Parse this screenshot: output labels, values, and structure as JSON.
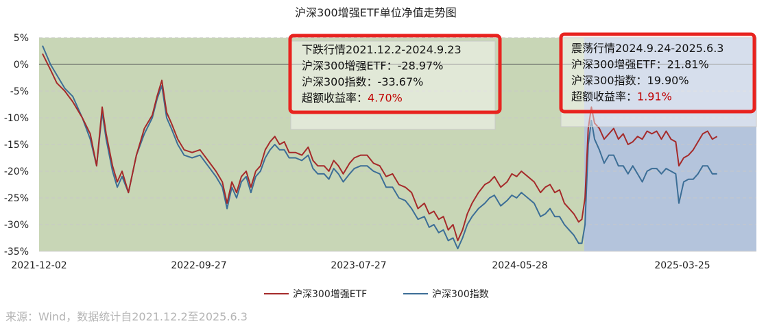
{
  "chart_data": {
    "type": "line",
    "title": "沪深300增强ETF单位净值走势图",
    "x_tick_labels": [
      "2021-12-02",
      "2022-09-27",
      "2023-07-27",
      "2024-05-28",
      "2025-03-25"
    ],
    "y_tick_labels": [
      "5%",
      "0%",
      "-5%",
      "-10%",
      "-15%",
      "-20%",
      "-25%",
      "-30%",
      "-35%"
    ],
    "ylim": [
      -35,
      5
    ],
    "y_unit": "%",
    "x_index_range": [
      0,
      850
    ],
    "grid": "horizontal dashed",
    "legend_position": "bottom-center",
    "series": [
      {
        "name": "沪深300增强ETF",
        "color": "#a52a2a",
        "points": [
          [
            0,
            2
          ],
          [
            10,
            -1
          ],
          [
            18,
            -3.5
          ],
          [
            28,
            -5
          ],
          [
            38,
            -7
          ],
          [
            50,
            -10
          ],
          [
            60,
            -13
          ],
          [
            68,
            -19
          ],
          [
            75,
            -8
          ],
          [
            80,
            -13
          ],
          [
            88,
            -19
          ],
          [
            94,
            -22
          ],
          [
            100,
            -20
          ],
          [
            108,
            -24
          ],
          [
            118,
            -17
          ],
          [
            128,
            -12
          ],
          [
            138,
            -9.5
          ],
          [
            144,
            -6
          ],
          [
            150,
            -3
          ],
          [
            156,
            -9
          ],
          [
            162,
            -11
          ],
          [
            170,
            -14
          ],
          [
            178,
            -16
          ],
          [
            188,
            -16.5
          ],
          [
            198,
            -16
          ],
          [
            208,
            -18
          ],
          [
            218,
            -20
          ],
          [
            226,
            -22
          ],
          [
            232,
            -26
          ],
          [
            238,
            -22
          ],
          [
            244,
            -24
          ],
          [
            250,
            -21
          ],
          [
            256,
            -20
          ],
          [
            262,
            -23
          ],
          [
            268,
            -20
          ],
          [
            274,
            -19
          ],
          [
            280,
            -16
          ],
          [
            286,
            -14.5
          ],
          [
            292,
            -13.5
          ],
          [
            298,
            -15
          ],
          [
            304,
            -14.5
          ],
          [
            310,
            -16.5
          ],
          [
            318,
            -16.5
          ],
          [
            326,
            -17
          ],
          [
            334,
            -15.5
          ],
          [
            340,
            -18
          ],
          [
            346,
            -19
          ],
          [
            354,
            -19
          ],
          [
            360,
            -20
          ],
          [
            366,
            -18
          ],
          [
            372,
            -19
          ],
          [
            378,
            -20.5
          ],
          [
            386,
            -18.5
          ],
          [
            392,
            -17.5
          ],
          [
            400,
            -17
          ],
          [
            408,
            -17
          ],
          [
            416,
            -18.5
          ],
          [
            424,
            -19
          ],
          [
            432,
            -21
          ],
          [
            440,
            -20.5
          ],
          [
            448,
            -22.5
          ],
          [
            456,
            -23
          ],
          [
            464,
            -24
          ],
          [
            472,
            -27
          ],
          [
            480,
            -26
          ],
          [
            486,
            -28
          ],
          [
            492,
            -27.5
          ],
          [
            498,
            -29
          ],
          [
            504,
            -28.5
          ],
          [
            510,
            -31
          ],
          [
            516,
            -30
          ],
          [
            522,
            -33
          ],
          [
            528,
            -31
          ],
          [
            534,
            -28
          ],
          [
            540,
            -26
          ],
          [
            548,
            -24
          ],
          [
            556,
            -22.5
          ],
          [
            562,
            -22
          ],
          [
            568,
            -21
          ],
          [
            576,
            -23
          ],
          [
            584,
            -22
          ],
          [
            590,
            -20.5
          ],
          [
            596,
            -21
          ],
          [
            602,
            -20
          ],
          [
            610,
            -21
          ],
          [
            618,
            -22
          ],
          [
            626,
            -24
          ],
          [
            632,
            -23
          ],
          [
            638,
            -22.5
          ],
          [
            644,
            -24
          ],
          [
            650,
            -23.5
          ],
          [
            656,
            -26
          ],
          [
            662,
            -27
          ],
          [
            668,
            -28
          ],
          [
            674,
            -29.5
          ],
          [
            678,
            -29
          ],
          [
            682,
            -25
          ],
          [
            686,
            -12
          ],
          [
            690,
            -8
          ],
          [
            694,
            -11
          ],
          [
            700,
            -12
          ],
          [
            706,
            -14
          ],
          [
            712,
            -13
          ],
          [
            718,
            -12
          ],
          [
            724,
            -14
          ],
          [
            730,
            -13
          ],
          [
            736,
            -15
          ],
          [
            742,
            -14.5
          ],
          [
            748,
            -13.5
          ],
          [
            754,
            -14
          ],
          [
            760,
            -12.5
          ],
          [
            766,
            -13
          ],
          [
            772,
            -12.5
          ],
          [
            778,
            -14
          ],
          [
            784,
            -12.5
          ],
          [
            790,
            -14
          ],
          [
            796,
            -14.5
          ],
          [
            800,
            -19
          ],
          [
            806,
            -17.5
          ],
          [
            812,
            -17
          ],
          [
            818,
            -16
          ],
          [
            824,
            -14.5
          ],
          [
            830,
            -13
          ],
          [
            836,
            -12.5
          ],
          [
            842,
            -14
          ],
          [
            848,
            -13.5
          ]
        ]
      },
      {
        "name": "沪深300指数",
        "color": "#3c6e96",
        "points": [
          [
            0,
            3.5
          ],
          [
            10,
            0
          ],
          [
            18,
            -2
          ],
          [
            28,
            -4.5
          ],
          [
            38,
            -6
          ],
          [
            50,
            -10
          ],
          [
            60,
            -14
          ],
          [
            68,
            -19
          ],
          [
            75,
            -9
          ],
          [
            80,
            -14
          ],
          [
            88,
            -20
          ],
          [
            94,
            -23
          ],
          [
            100,
            -21
          ],
          [
            108,
            -24
          ],
          [
            118,
            -17
          ],
          [
            128,
            -13
          ],
          [
            138,
            -10
          ],
          [
            144,
            -6.5
          ],
          [
            150,
            -4
          ],
          [
            156,
            -10
          ],
          [
            162,
            -12
          ],
          [
            170,
            -15
          ],
          [
            178,
            -17
          ],
          [
            188,
            -17.5
          ],
          [
            198,
            -17
          ],
          [
            208,
            -19
          ],
          [
            218,
            -21
          ],
          [
            226,
            -23
          ],
          [
            232,
            -27
          ],
          [
            238,
            -23
          ],
          [
            244,
            -25
          ],
          [
            250,
            -22
          ],
          [
            256,
            -21
          ],
          [
            262,
            -24
          ],
          [
            268,
            -21
          ],
          [
            274,
            -20
          ],
          [
            280,
            -17.5
          ],
          [
            286,
            -16
          ],
          [
            292,
            -15
          ],
          [
            298,
            -16
          ],
          [
            304,
            -16
          ],
          [
            310,
            -17.5
          ],
          [
            318,
            -17.5
          ],
          [
            326,
            -18
          ],
          [
            334,
            -17
          ],
          [
            340,
            -19.5
          ],
          [
            346,
            -20.5
          ],
          [
            354,
            -20.5
          ],
          [
            360,
            -21.5
          ],
          [
            366,
            -19.5
          ],
          [
            372,
            -20.5
          ],
          [
            378,
            -22
          ],
          [
            386,
            -20.5
          ],
          [
            392,
            -19.5
          ],
          [
            400,
            -19
          ],
          [
            408,
            -19
          ],
          [
            416,
            -20
          ],
          [
            424,
            -20.5
          ],
          [
            432,
            -23
          ],
          [
            440,
            -23
          ],
          [
            448,
            -25
          ],
          [
            456,
            -25.5
          ],
          [
            464,
            -27
          ],
          [
            472,
            -29
          ],
          [
            480,
            -28.5
          ],
          [
            486,
            -30.5
          ],
          [
            492,
            -30
          ],
          [
            498,
            -31.5
          ],
          [
            504,
            -31
          ],
          [
            510,
            -33
          ],
          [
            516,
            -32.5
          ],
          [
            522,
            -34.5
          ],
          [
            528,
            -32.5
          ],
          [
            534,
            -30
          ],
          [
            540,
            -28.5
          ],
          [
            548,
            -27
          ],
          [
            556,
            -26
          ],
          [
            562,
            -25
          ],
          [
            568,
            -24.5
          ],
          [
            576,
            -26.5
          ],
          [
            584,
            -25.5
          ],
          [
            590,
            -24.5
          ],
          [
            596,
            -25
          ],
          [
            602,
            -24
          ],
          [
            610,
            -25
          ],
          [
            618,
            -26
          ],
          [
            626,
            -28.5
          ],
          [
            632,
            -28
          ],
          [
            638,
            -27
          ],
          [
            644,
            -28.5
          ],
          [
            650,
            -28.5
          ],
          [
            656,
            -30
          ],
          [
            662,
            -31
          ],
          [
            668,
            -32
          ],
          [
            674,
            -33.5
          ],
          [
            678,
            -33.5
          ],
          [
            682,
            -30
          ],
          [
            686,
            -15
          ],
          [
            690,
            -10.5
          ],
          [
            694,
            -14
          ],
          [
            700,
            -16
          ],
          [
            706,
            -18.5
          ],
          [
            712,
            -17
          ],
          [
            718,
            -17
          ],
          [
            724,
            -19
          ],
          [
            730,
            -19
          ],
          [
            736,
            -20.5
          ],
          [
            742,
            -19
          ],
          [
            748,
            -20.5
          ],
          [
            754,
            -22
          ],
          [
            760,
            -20
          ],
          [
            766,
            -19.5
          ],
          [
            772,
            -19.5
          ],
          [
            778,
            -20.5
          ],
          [
            784,
            -19.5
          ],
          [
            790,
            -20
          ],
          [
            796,
            -20.5
          ],
          [
            800,
            -26
          ],
          [
            806,
            -22
          ],
          [
            812,
            -21.5
          ],
          [
            818,
            -21.5
          ],
          [
            824,
            -20.5
          ],
          [
            830,
            -19
          ],
          [
            836,
            -19
          ],
          [
            842,
            -20.5
          ],
          [
            848,
            -20.5
          ]
        ]
      }
    ],
    "shaded_periods": [
      {
        "name": "下跌行情",
        "x_start": 0,
        "x_end": 681,
        "color": "#c8d6b6"
      },
      {
        "name": "震荡行情",
        "x_start": 681,
        "x_end": 850,
        "color": "#b4c4dc"
      }
    ],
    "annotations": [
      {
        "period": "下跌行情",
        "title": "下跌行情2021.12.2-2024.9.23",
        "etf_label": "沪深300增强ETF：",
        "etf_value": "-28.97%",
        "index_label": "沪深300指数：",
        "index_value": "-33.67%",
        "excess_label": "超额收益率：",
        "excess_value": "4.70%"
      },
      {
        "period": "震荡行情",
        "title": "震荡行情2024.9.24-2025.6.3",
        "etf_label": "沪深300增强ETF：",
        "etf_value": "21.81%",
        "index_label": "沪深300指数：",
        "index_value": "19.90%",
        "excess_label": "超额收益率：",
        "excess_value": "1.91%"
      }
    ],
    "highlight_color": "#e8231f",
    "excess_value_color": "#c00000"
  },
  "source_note": "来源：Wind，数据统计自2021.12.2至2025.6.3"
}
